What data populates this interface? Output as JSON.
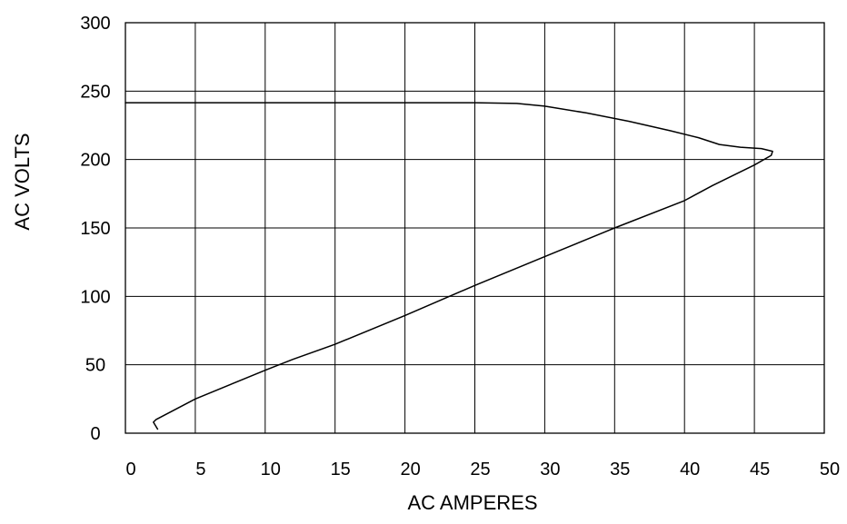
{
  "chart_data": {
    "type": "line",
    "title": "",
    "xlabel": "AC AMPERES",
    "ylabel": "AC VOLTS",
    "xlim": [
      0,
      50
    ],
    "ylim": [
      0,
      300
    ],
    "xticks": [
      0,
      5,
      10,
      15,
      20,
      25,
      30,
      35,
      40,
      45,
      50
    ],
    "yticks": [
      0,
      50,
      100,
      150,
      200,
      250,
      300
    ],
    "xtick_labels": [
      "0",
      "5",
      "10",
      "15",
      "20",
      "25",
      "30",
      "35",
      "40",
      "45",
      "50"
    ],
    "ytick_labels": [
      "0",
      "50",
      "100",
      "150",
      "200",
      "250",
      "300"
    ],
    "grid": true,
    "legend": "none",
    "line_color": "#000000",
    "series": [
      {
        "x": [
          0,
          5,
          10,
          15,
          20,
          25,
          28,
          30,
          33,
          36,
          39,
          41,
          42.5,
          44,
          45.5,
          46.3,
          46.2,
          45,
          42,
          40,
          35,
          30,
          25,
          20,
          15,
          12,
          10,
          5,
          2.2,
          2.0,
          2.3
        ],
        "y": [
          241.5,
          241.5,
          241.5,
          241.5,
          241.5,
          241.5,
          241,
          239,
          234,
          228,
          221,
          216,
          211,
          209,
          208,
          206,
          203,
          196,
          181,
          170,
          150,
          129,
          108,
          86,
          65,
          54,
          46,
          25,
          10,
          8,
          3
        ]
      }
    ]
  }
}
